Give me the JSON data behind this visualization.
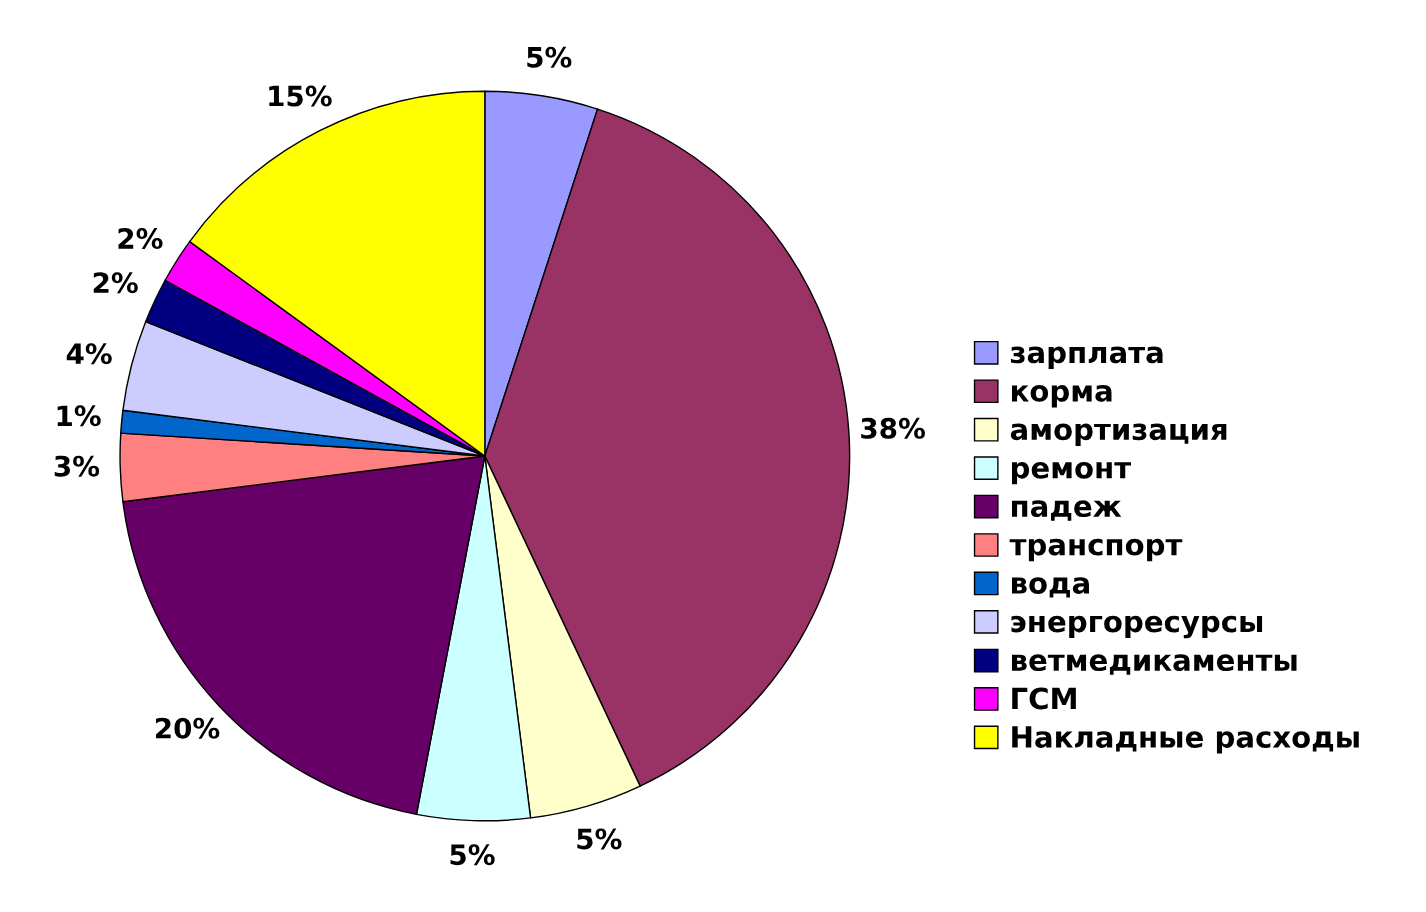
{
  "chart_data": {
    "type": "pie",
    "categories": [
      "зарплата",
      "корма",
      "амортизация",
      "ремонт",
      "падеж",
      "транспорт",
      "вода",
      "энергоресурсы",
      "ветмедикаменты",
      "ГСМ",
      "Накладные расходы"
    ],
    "values": [
      5,
      38,
      5,
      5,
      20,
      3,
      1,
      4,
      2,
      2,
      15
    ],
    "colors": [
      "#9999ff",
      "#993366",
      "#ffffcc",
      "#ccffff",
      "#660066",
      "#ff8080",
      "#0066cc",
      "#ccccff",
      "#000080",
      "#ff00ff",
      "#ffff00"
    ],
    "value_labels": [
      "5%",
      "38%",
      "5%",
      "5%",
      "20%",
      "3%",
      "1%",
      "4%",
      "2%",
      "2%",
      "15%"
    ],
    "legend": "right"
  }
}
